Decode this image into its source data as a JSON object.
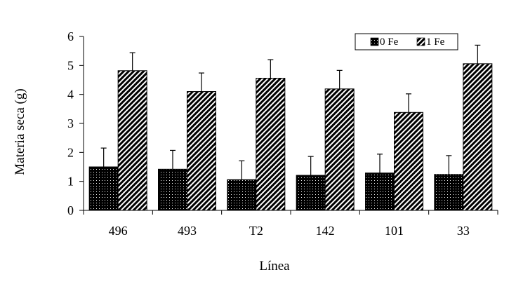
{
  "chart_data": {
    "type": "bar",
    "xlabel": "Línea",
    "ylabel": "Materia seca (g)",
    "categories": [
      "496",
      "493",
      "T2",
      "142",
      "101",
      "33"
    ],
    "ylim": [
      0,
      6
    ],
    "yticks": [
      "0",
      "1",
      "2",
      "3",
      "4",
      "5",
      "6"
    ],
    "series": [
      {
        "name": "0 Fe",
        "values": [
          1.5,
          1.42,
          1.06,
          1.21,
          1.29,
          1.24
        ],
        "errors": [
          0.65,
          0.65,
          0.65,
          0.65,
          0.65,
          0.65
        ],
        "pattern": "dots",
        "color": "#000000"
      },
      {
        "name": "1 Fe",
        "values": [
          4.82,
          4.1,
          4.56,
          4.19,
          3.38,
          5.06
        ],
        "errors": [
          0.62,
          0.64,
          0.64,
          0.64,
          0.64,
          0.64
        ],
        "pattern": "diagonal-hatch",
        "color": "#000000"
      }
    ],
    "legend_position": "top-right",
    "grid": false
  }
}
